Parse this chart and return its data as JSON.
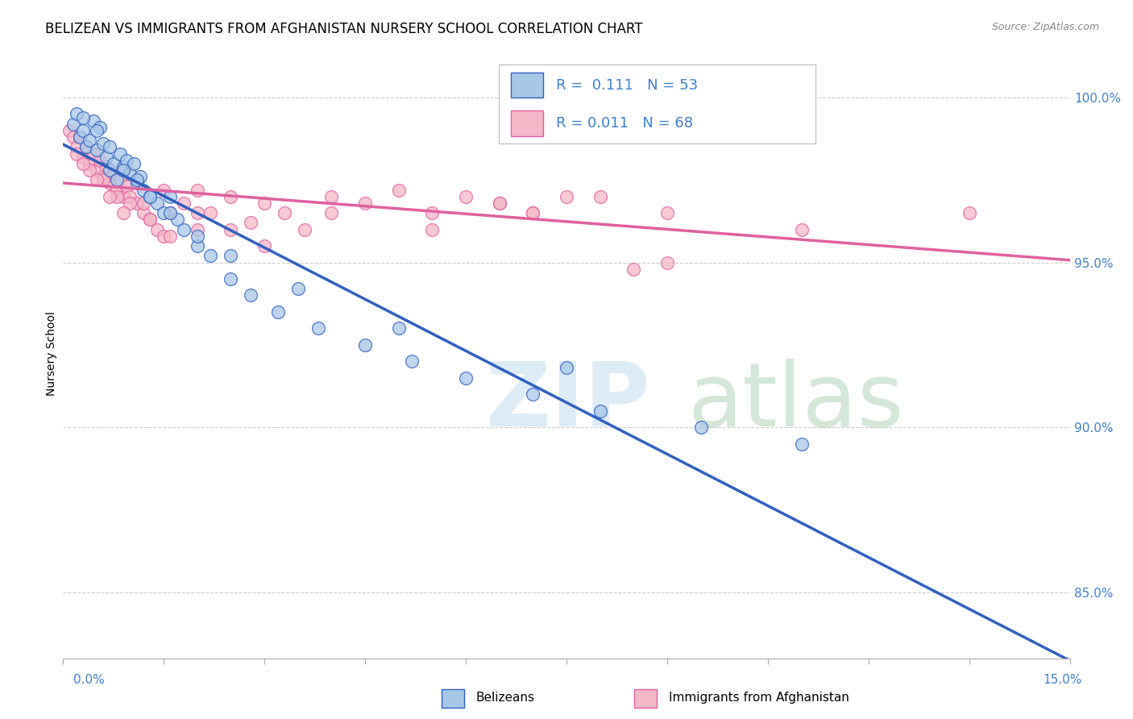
{
  "title": "BELIZEAN VS IMMIGRANTS FROM AFGHANISTAN NURSERY SCHOOL CORRELATION CHART",
  "source": "Source: ZipAtlas.com",
  "ylabel": "Nursery School",
  "xmin": 0.0,
  "xmax": 15.0,
  "ymin": 83.0,
  "ymax": 101.5,
  "yticks": [
    85.0,
    90.0,
    95.0,
    100.0
  ],
  "legend_R1": "0.111",
  "legend_N1": "53",
  "legend_R2": "0.011",
  "legend_N2": "68",
  "color_blue": "#a8c8e8",
  "color_pink": "#f4b8c8",
  "line_color_blue": "#3060c0",
  "line_color_pink": "#e060a0",
  "tick_color": "#4080d0",
  "blue_scatter_x": [
    0.15,
    0.2,
    0.25,
    0.3,
    0.35,
    0.4,
    0.45,
    0.5,
    0.55,
    0.6,
    0.65,
    0.7,
    0.75,
    0.8,
    0.85,
    0.9,
    0.95,
    1.0,
    1.05,
    1.1,
    1.15,
    1.2,
    1.3,
    1.4,
    1.5,
    1.6,
    1.7,
    1.8,
    2.0,
    2.2,
    2.5,
    2.8,
    3.2,
    3.8,
    4.5,
    5.2,
    6.0,
    7.0,
    8.0,
    9.5,
    11.0,
    0.3,
    0.5,
    0.7,
    0.9,
    1.1,
    1.3,
    1.6,
    2.0,
    2.5,
    3.5,
    5.0,
    7.5
  ],
  "blue_scatter_y": [
    99.2,
    99.5,
    98.8,
    99.0,
    98.5,
    98.7,
    99.3,
    98.4,
    99.1,
    98.6,
    98.2,
    97.8,
    98.0,
    97.5,
    98.3,
    97.9,
    98.1,
    97.7,
    98.0,
    97.4,
    97.6,
    97.2,
    97.0,
    96.8,
    96.5,
    97.0,
    96.3,
    96.0,
    95.5,
    95.2,
    94.5,
    94.0,
    93.5,
    93.0,
    92.5,
    92.0,
    91.5,
    91.0,
    90.5,
    90.0,
    89.5,
    99.4,
    99.0,
    98.5,
    97.8,
    97.5,
    97.0,
    96.5,
    95.8,
    95.2,
    94.2,
    93.0,
    91.8
  ],
  "pink_scatter_x": [
    0.1,
    0.15,
    0.2,
    0.25,
    0.3,
    0.35,
    0.4,
    0.45,
    0.5,
    0.55,
    0.6,
    0.65,
    0.7,
    0.75,
    0.8,
    0.85,
    0.9,
    0.95,
    1.0,
    1.1,
    1.2,
    1.3,
    1.4,
    1.5,
    1.6,
    1.8,
    2.0,
    2.2,
    2.5,
    2.8,
    3.0,
    3.3,
    3.6,
    4.0,
    4.5,
    5.0,
    5.5,
    6.0,
    6.5,
    7.0,
    8.0,
    9.0,
    0.2,
    0.4,
    0.6,
    0.8,
    1.0,
    1.3,
    1.6,
    2.0,
    2.5,
    3.0,
    4.0,
    5.5,
    7.0,
    9.0,
    11.0,
    13.5,
    0.3,
    0.5,
    0.7,
    0.9,
    1.2,
    1.5,
    2.0,
    6.5,
    7.5,
    8.5
  ],
  "pink_scatter_y": [
    99.0,
    98.8,
    98.5,
    98.8,
    98.2,
    98.5,
    98.0,
    98.3,
    97.8,
    98.1,
    97.6,
    97.9,
    97.4,
    97.7,
    97.2,
    97.5,
    97.0,
    97.3,
    97.0,
    96.8,
    96.5,
    96.3,
    96.0,
    95.8,
    96.5,
    96.8,
    97.2,
    96.5,
    97.0,
    96.2,
    96.8,
    96.5,
    96.0,
    97.0,
    96.8,
    97.2,
    96.5,
    97.0,
    96.8,
    96.5,
    97.0,
    96.5,
    98.3,
    97.8,
    97.5,
    97.0,
    96.8,
    96.3,
    95.8,
    96.5,
    96.0,
    95.5,
    96.5,
    96.0,
    96.5,
    95.0,
    96.0,
    96.5,
    98.0,
    97.5,
    97.0,
    96.5,
    96.8,
    97.2,
    96.0,
    96.8,
    97.0,
    94.8
  ],
  "background_color": "#ffffff",
  "grid_color": "#cccccc"
}
